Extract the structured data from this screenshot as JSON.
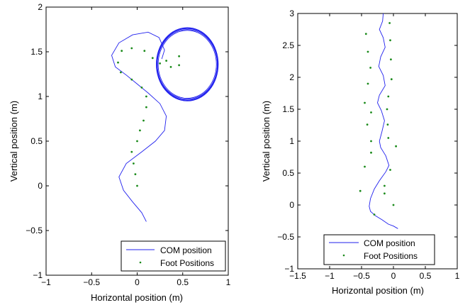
{
  "chart_data": [
    {
      "type": "line",
      "xlabel": "Horizontal position (m)",
      "ylabel": "Vertical position (m)",
      "xlim": [
        -1,
        1
      ],
      "ylim": [
        -1,
        2
      ],
      "xticks": [
        -1,
        -0.5,
        0,
        0.5,
        1
      ],
      "yticks": [
        -1,
        -0.5,
        0,
        0.5,
        1,
        1.5,
        2
      ],
      "xtick_labels": [
        "−1",
        "−0.5",
        "0",
        "0.5",
        "1"
      ],
      "ytick_labels": [
        "−1",
        "−0.5",
        "0",
        "0.5",
        "1",
        "1.5",
        "2"
      ],
      "grid": false,
      "legend": "bottom-right",
      "series": [
        {
          "name": "COM position",
          "style": "line",
          "color": "#2020ee",
          "points": [
            [
              0.1,
              -0.4
            ],
            [
              0.05,
              -0.3
            ],
            [
              -0.05,
              -0.18
            ],
            [
              -0.15,
              -0.05
            ],
            [
              -0.2,
              0.1
            ],
            [
              -0.12,
              0.25
            ],
            [
              0.05,
              0.38
            ],
            [
              0.2,
              0.5
            ],
            [
              0.3,
              0.62
            ],
            [
              0.32,
              0.78
            ],
            [
              0.25,
              0.92
            ],
            [
              0.12,
              1.04
            ],
            [
              0.0,
              1.14
            ],
            [
              -0.12,
              1.24
            ],
            [
              -0.24,
              1.33
            ],
            [
              -0.28,
              1.46
            ],
            [
              -0.2,
              1.6
            ],
            [
              -0.05,
              1.69
            ],
            [
              0.12,
              1.72
            ],
            [
              0.24,
              1.66
            ],
            [
              0.3,
              1.52
            ],
            [
              0.27,
              1.42
            ]
          ]
        },
        {
          "name": "COM position",
          "style": "circle",
          "color": "#2020ee",
          "cx": 0.55,
          "cy": 1.36,
          "radii": [
            [
              0.33,
              0.4
            ],
            [
              0.34,
              0.41
            ],
            [
              0.33,
              0.39
            ],
            [
              0.32,
              0.38
            ],
            [
              0.335,
              0.405
            ]
          ]
        },
        {
          "name": "Foot Positions",
          "style": "points",
          "color": "#1a8a1a",
          "points": [
            [
              0.0,
              0.0
            ],
            [
              -0.02,
              0.13
            ],
            [
              -0.04,
              0.25
            ],
            [
              -0.06,
              0.38
            ],
            [
              0.0,
              0.5
            ],
            [
              0.03,
              0.62
            ],
            [
              0.07,
              0.73
            ],
            [
              0.1,
              0.88
            ],
            [
              0.1,
              1.0
            ],
            [
              0.05,
              1.1
            ],
            [
              -0.06,
              1.19
            ],
            [
              -0.18,
              1.27
            ],
            [
              -0.21,
              1.38
            ],
            [
              -0.17,
              1.51
            ],
            [
              -0.06,
              1.54
            ],
            [
              0.08,
              1.51
            ],
            [
              0.17,
              1.43
            ],
            [
              0.25,
              1.37
            ],
            [
              0.32,
              1.4
            ],
            [
              0.37,
              1.33
            ],
            [
              0.46,
              1.45
            ],
            [
              0.46,
              1.35
            ]
          ]
        }
      ]
    },
    {
      "type": "line",
      "xlabel": "Horizontal position (m)",
      "ylabel": "Vertical position (m)",
      "xlim": [
        -1.5,
        1
      ],
      "ylim": [
        -1,
        3
      ],
      "xticks": [
        -1.5,
        -1,
        -0.5,
        0,
        0.5,
        1
      ],
      "yticks": [
        -1,
        -0.5,
        0,
        0.5,
        1,
        1.5,
        2,
        2.5,
        3
      ],
      "xtick_labels": [
        "−1.5",
        "−1",
        "−0.5",
        "0",
        "0.5",
        "1"
      ],
      "ytick_labels": [
        "−1",
        "−0.5",
        "0",
        "0.5",
        "1",
        "1.5",
        "2",
        "2.5",
        "3"
      ],
      "grid": false,
      "legend": "bottom-right",
      "series": [
        {
          "name": "COM position",
          "style": "line",
          "color": "#2020ee",
          "points": [
            [
              0.07,
              -0.37
            ],
            [
              0.0,
              -0.33
            ],
            [
              -0.08,
              -0.3
            ],
            [
              -0.18,
              -0.23
            ],
            [
              -0.28,
              -0.17
            ],
            [
              -0.36,
              -0.1
            ],
            [
              -0.38,
              -0.02
            ],
            [
              -0.36,
              0.1
            ],
            [
              -0.3,
              0.25
            ],
            [
              -0.22,
              0.38
            ],
            [
              -0.12,
              0.52
            ],
            [
              -0.07,
              0.62
            ],
            [
              -0.12,
              0.77
            ],
            [
              -0.2,
              0.9
            ],
            [
              -0.22,
              1.0
            ],
            [
              -0.18,
              1.15
            ],
            [
              -0.14,
              1.32
            ],
            [
              -0.19,
              1.48
            ],
            [
              -0.25,
              1.6
            ],
            [
              -0.22,
              1.72
            ],
            [
              -0.13,
              1.87
            ],
            [
              -0.16,
              2.03
            ],
            [
              -0.23,
              2.17
            ],
            [
              -0.2,
              2.32
            ],
            [
              -0.13,
              2.47
            ],
            [
              -0.16,
              2.62
            ],
            [
              -0.22,
              2.75
            ],
            [
              -0.17,
              2.88
            ],
            [
              -0.16,
              3.0
            ]
          ]
        },
        {
          "name": "Foot Positions",
          "style": "points",
          "color": "#1a8a1a",
          "points": [
            [
              -0.3,
              -0.15
            ],
            [
              0.0,
              0.0
            ],
            [
              -0.52,
              0.22
            ],
            [
              -0.14,
              0.18
            ],
            [
              -0.14,
              0.3
            ],
            [
              -0.45,
              0.6
            ],
            [
              -0.05,
              0.55
            ],
            [
              -0.35,
              0.82
            ],
            [
              0.04,
              0.92
            ],
            [
              -0.35,
              1.0
            ],
            [
              -0.08,
              1.05
            ],
            [
              -0.41,
              1.26
            ],
            [
              -0.09,
              1.26
            ],
            [
              -0.45,
              1.6
            ],
            [
              -0.1,
              1.5
            ],
            [
              -0.35,
              1.45
            ],
            [
              -0.08,
              1.7
            ],
            [
              -0.4,
              1.9
            ],
            [
              -0.03,
              1.97
            ],
            [
              -0.36,
              2.15
            ],
            [
              -0.04,
              2.28
            ],
            [
              -0.4,
              2.4
            ],
            [
              -0.05,
              2.58
            ],
            [
              -0.43,
              2.68
            ],
            [
              -0.06,
              2.85
            ]
          ]
        }
      ]
    }
  ],
  "legend": {
    "com_label": "COM position",
    "foot_label": "Foot Positions"
  }
}
